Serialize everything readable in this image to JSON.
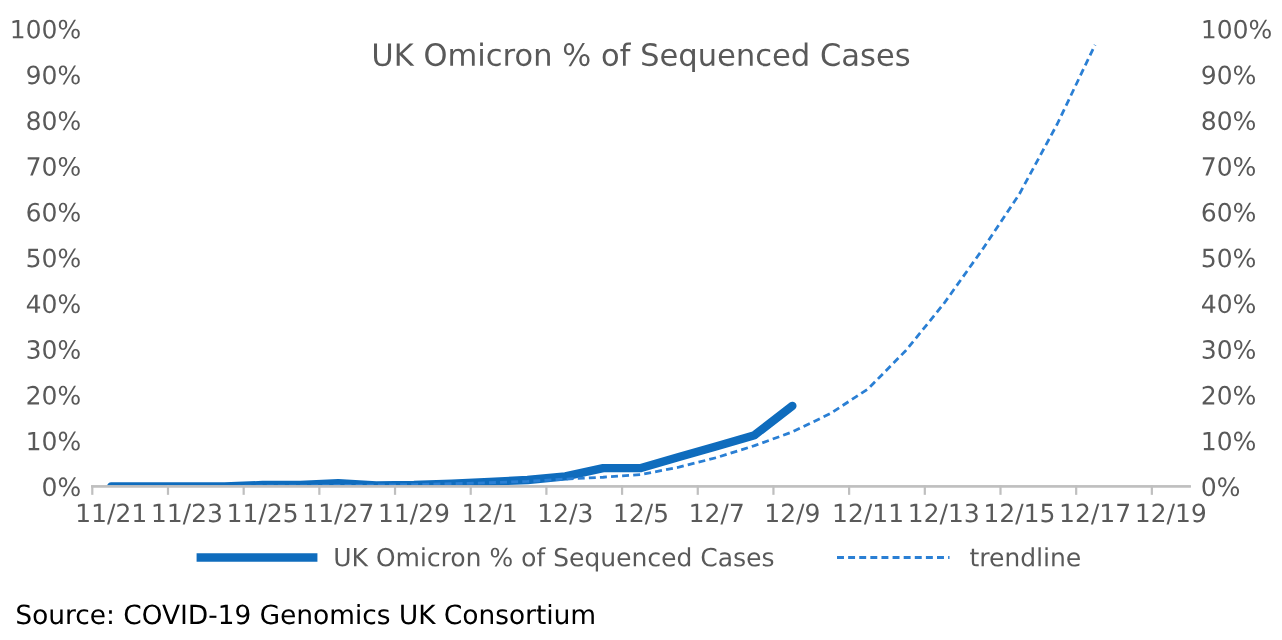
{
  "chart_data": {
    "type": "line",
    "title": "UK Omicron % of Sequenced Cases",
    "categories": [
      "11/21",
      null,
      "11/23",
      null,
      "11/25",
      null,
      "11/27",
      null,
      "11/29",
      null,
      "12/1",
      null,
      "12/3",
      null,
      "12/5",
      null,
      "12/7",
      null,
      "12/9",
      null,
      "12/11",
      null,
      "12/13",
      null,
      "12/15",
      null,
      "12/17",
      null,
      "12/19"
    ],
    "series": [
      {
        "name": "UK Omicron % of Sequenced Cases",
        "color": "#0f6cbd",
        "line_style": "solid",
        "values": [
          0.0,
          0.0,
          0.0,
          0.0,
          0.3,
          0.3,
          0.7,
          0.2,
          0.3,
          0.6,
          1.0,
          1.4,
          2.2,
          4.0,
          4.0,
          6.4,
          8.8,
          11.2,
          17.6,
          null,
          null,
          null,
          null,
          null,
          null,
          null,
          null,
          null,
          null
        ]
      },
      {
        "name": "trendline",
        "color": "#2a7fd4",
        "line_style": "dashed",
        "values": [
          0.0,
          0.0,
          0.0,
          0.0,
          0.1,
          0.1,
          0.2,
          0.3,
          0.4,
          0.6,
          0.8,
          1.1,
          1.6,
          2.0,
          2.6,
          4.2,
          6.3,
          8.9,
          11.9,
          15.9,
          21.3,
          29.7,
          39.9,
          51.5,
          63.9,
          79.2,
          96.5,
          null,
          null
        ]
      }
    ],
    "ylim": [
      0,
      100
    ],
    "yticks": [
      {
        "value": 0,
        "label": "0%"
      },
      {
        "value": 10,
        "label": "10%"
      },
      {
        "value": 20,
        "label": "20%"
      },
      {
        "value": 30,
        "label": "30%"
      },
      {
        "value": 40,
        "label": "40%"
      },
      {
        "value": 50,
        "label": "50%"
      },
      {
        "value": 60,
        "label": "60%"
      },
      {
        "value": 70,
        "label": "70%"
      },
      {
        "value": 80,
        "label": "80%"
      },
      {
        "value": 90,
        "label": "90%"
      },
      {
        "value": 100,
        "label": "100%"
      }
    ],
    "y2lim": [
      0,
      100
    ],
    "y2ticks": [
      {
        "value": 0,
        "label": "0%"
      },
      {
        "value": 10,
        "label": "10%"
      },
      {
        "value": 20,
        "label": "20%"
      },
      {
        "value": 30,
        "label": "30%"
      },
      {
        "value": 40,
        "label": "40%"
      },
      {
        "value": 50,
        "label": "50%"
      },
      {
        "value": 60,
        "label": "60%"
      },
      {
        "value": 70,
        "label": "70%"
      },
      {
        "value": 80,
        "label": "80%"
      },
      {
        "value": 90,
        "label": "90%"
      },
      {
        "value": 100,
        "label": "100%"
      }
    ],
    "grid": false,
    "legend": "bottom",
    "marker": "none",
    "annotations": [
      "Source: COVID-19 Genomics UK Consortium"
    ]
  }
}
